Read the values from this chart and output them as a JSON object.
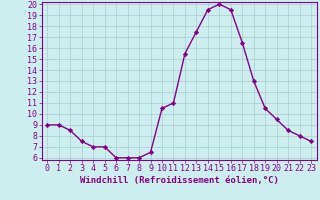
{
  "x": [
    0,
    1,
    2,
    3,
    4,
    5,
    6,
    7,
    8,
    9,
    10,
    11,
    12,
    13,
    14,
    15,
    16,
    17,
    18,
    19,
    20,
    21,
    22,
    23
  ],
  "y": [
    9.0,
    9.0,
    8.5,
    7.5,
    7.0,
    7.0,
    6.0,
    6.0,
    6.0,
    6.5,
    10.5,
    11.0,
    15.5,
    17.5,
    19.5,
    20.0,
    19.5,
    16.5,
    13.0,
    10.5,
    9.5,
    8.5,
    8.0,
    7.5
  ],
  "line_color": "#880088",
  "marker": "D",
  "marker_size": 2.2,
  "bg_color": "#cceeee",
  "grid_color": "#aacccc",
  "xlabel": "Windchill (Refroidissement éolien,°C)",
  "ylim": [
    6,
    20
  ],
  "xlim": [
    -0.5,
    23.5
  ],
  "yticks": [
    6,
    7,
    8,
    9,
    10,
    11,
    12,
    13,
    14,
    15,
    16,
    17,
    18,
    19,
    20
  ],
  "xticks": [
    0,
    1,
    2,
    3,
    4,
    5,
    6,
    7,
    8,
    9,
    10,
    11,
    12,
    13,
    14,
    15,
    16,
    17,
    18,
    19,
    20,
    21,
    22,
    23
  ],
  "tick_color": "#880088",
  "tick_label_color": "#880088",
  "xlabel_color": "#880088",
  "xlabel_fontsize": 6.5,
  "tick_fontsize": 6.0,
  "line_width": 1.0,
  "spine_color": "#880088",
  "bottom_bar_color": "#880088"
}
